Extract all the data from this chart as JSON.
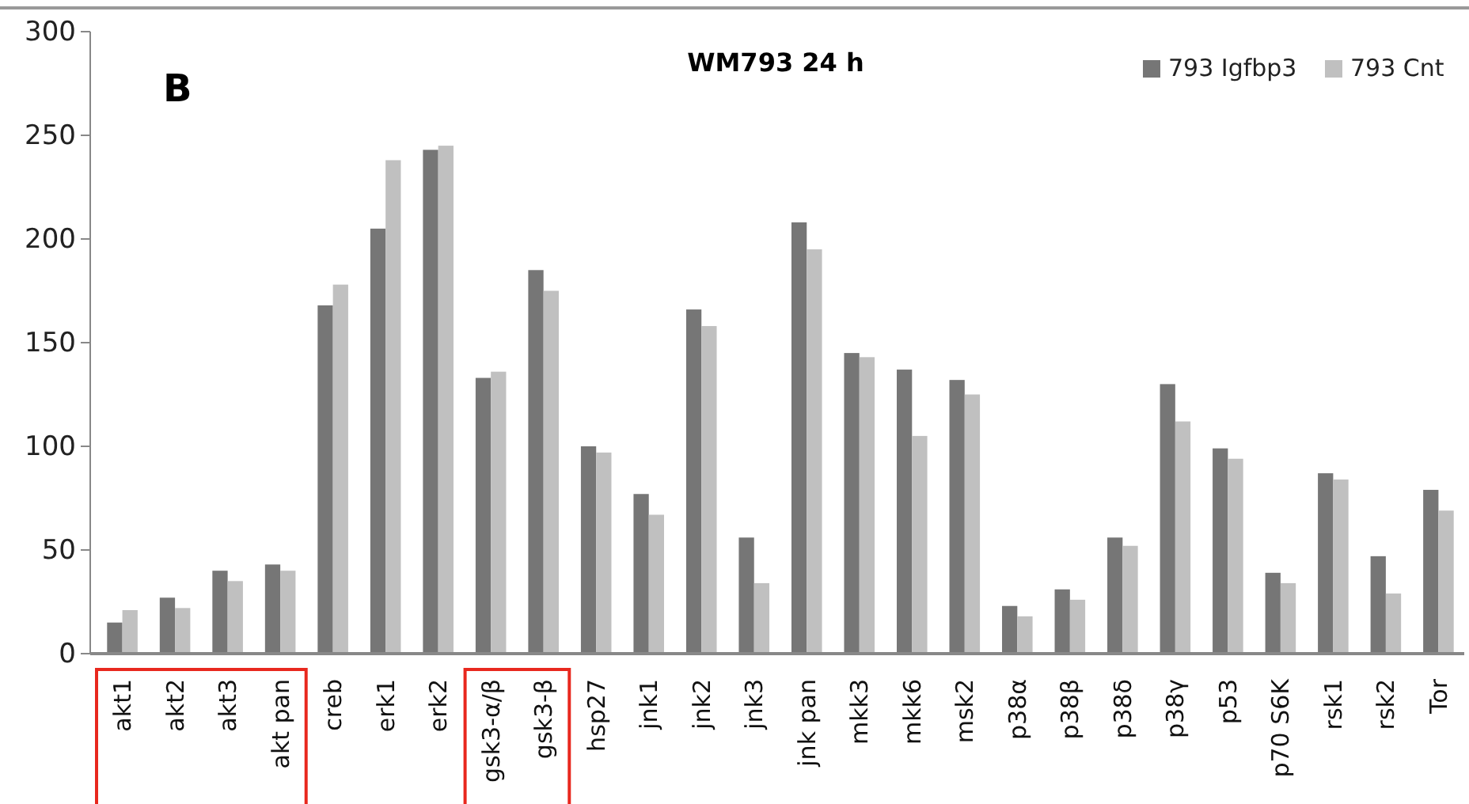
{
  "chart_data": {
    "type": "bar",
    "title": "WM793 24 h",
    "annotations": [
      "B"
    ],
    "categories": [
      "akt1",
      "akt2",
      "akt3",
      "akt pan",
      "creb",
      "erk1",
      "erk2",
      "gsk3-α/β",
      "gsk3-β",
      "hsp27",
      "jnk1",
      "jnk2",
      "jnk3",
      "jnk pan",
      "mkk3",
      "mkk6",
      "msk2",
      "p38α",
      "p38β",
      "p38δ",
      "p38γ",
      "p53",
      "p70 S6K",
      "rsk1",
      "rsk2",
      "Tor"
    ],
    "series": [
      {
        "name": "793 Igfbp3",
        "color": "#767676",
        "values": [
          15,
          27,
          40,
          43,
          168,
          205,
          243,
          133,
          185,
          100,
          77,
          166,
          56,
          208,
          145,
          137,
          132,
          23,
          31,
          56,
          130,
          99,
          39,
          87,
          47,
          79
        ]
      },
      {
        "name": "793 Cnt",
        "color": "#c0c0c0",
        "values": [
          21,
          22,
          35,
          40,
          178,
          238,
          245,
          136,
          175,
          97,
          67,
          158,
          34,
          195,
          143,
          105,
          125,
          18,
          26,
          52,
          112,
          94,
          34,
          84,
          29,
          69
        ]
      }
    ],
    "ylim": [
      0,
      300
    ],
    "yticks": [
      0,
      50,
      100,
      150,
      200,
      250,
      300
    ],
    "grid": false,
    "legend": "top right"
  }
}
